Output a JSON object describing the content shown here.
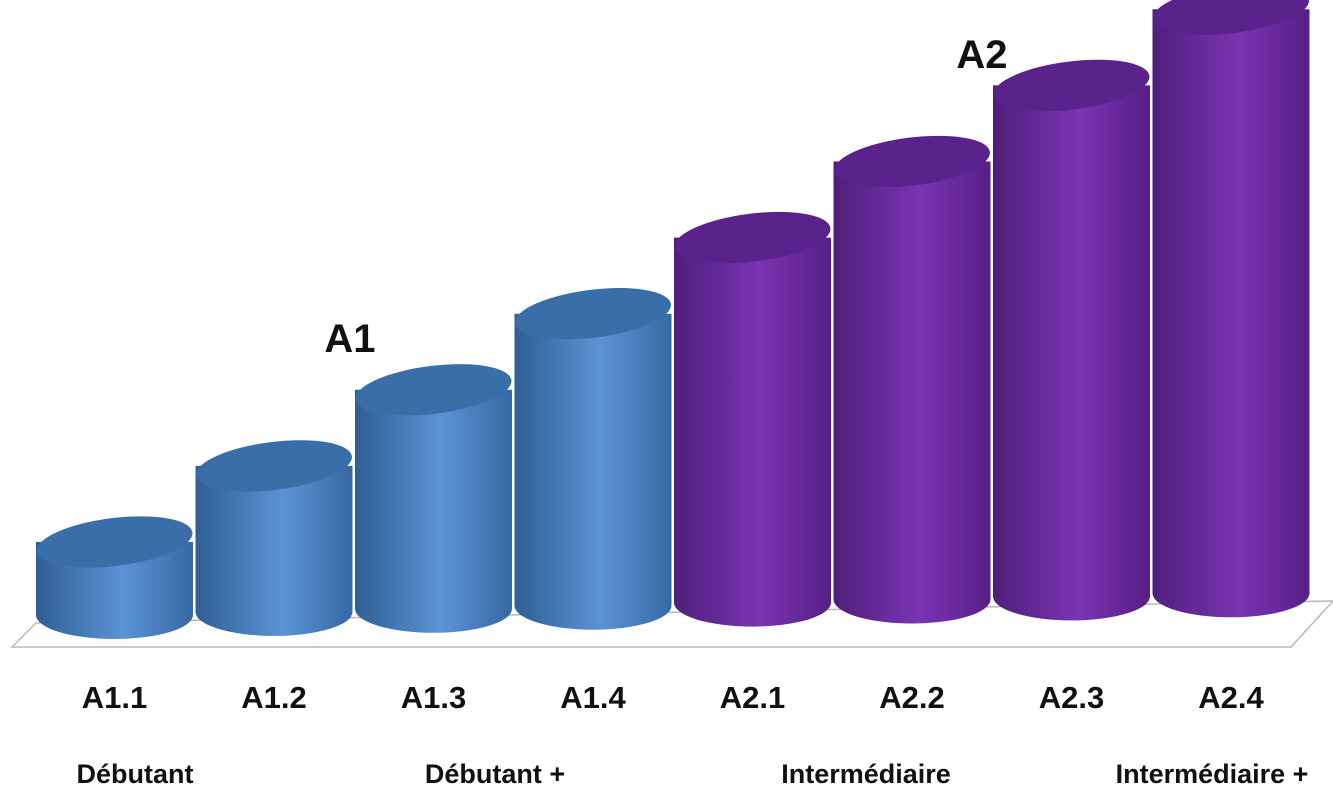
{
  "chart_data": {
    "type": "bar",
    "style": "3d-cylinder",
    "categories": [
      "A1.1",
      "A1.2",
      "A1.3",
      "A1.4",
      "A2.1",
      "A2.2",
      "A2.3",
      "A2.4"
    ],
    "values": [
      1,
      2,
      3,
      4,
      5,
      6,
      7,
      8
    ],
    "groups": [
      {
        "name": "A1",
        "categories": [
          "A1.1",
          "A1.2",
          "A1.3",
          "A1.4"
        ],
        "color": "#4f81bd"
      },
      {
        "name": "A2",
        "categories": [
          "A2.1",
          "A2.2",
          "A2.3",
          "A2.4"
        ],
        "color": "#7030a0"
      }
    ],
    "level_labels": [
      "Débutant",
      "Débutant +",
      "Intermédiaire",
      "Intermédiaire +"
    ],
    "title": "",
    "xlabel": "",
    "ylabel": "",
    "grid": false,
    "legend": "none"
  },
  "colors": {
    "A1": "#4f81bd",
    "A2": "#7030a0",
    "floor": "#b8b8b8"
  }
}
